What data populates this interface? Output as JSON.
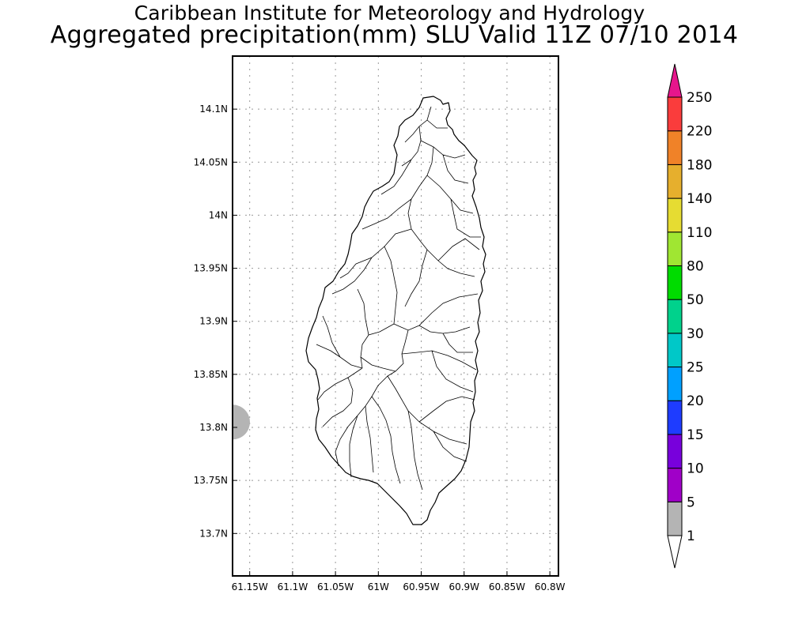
{
  "title": "Caribbean Institute for Meteorology and Hydrology",
  "subtitle": "Aggregated precipitation(mm) SLU Valid 11Z 07/10 2014",
  "map": {
    "region": "Saint Lucia",
    "lon_range": [
      -61.17,
      -60.79
    ],
    "lat_range": [
      13.66,
      14.15
    ],
    "grid": true,
    "x_tick_labels": [
      "61.15W",
      "61.1W",
      "61.05W",
      "61W",
      "60.95W",
      "60.9W",
      "60.85W",
      "60.8W"
    ],
    "x_tick_values": [
      -61.15,
      -61.1,
      -61.05,
      -61.0,
      -60.95,
      -60.9,
      -60.85,
      -60.8
    ],
    "y_tick_labels": [
      "14.1N",
      "14.05N",
      "14N",
      "13.95N",
      "13.9N",
      "13.85N",
      "13.8N",
      "13.75N",
      "13.7N"
    ],
    "y_tick_values": [
      14.1,
      14.05,
      14.0,
      13.95,
      13.9,
      13.85,
      13.8,
      13.75,
      13.7
    ],
    "precip_area": {
      "lon": -61.17,
      "lat": 13.805,
      "class": "1-5",
      "color": "#b4b4b4"
    }
  },
  "colorbar": {
    "labels": [
      "1",
      "5",
      "10",
      "15",
      "20",
      "25",
      "30",
      "50",
      "80",
      "110",
      "140",
      "180",
      "220",
      "250"
    ],
    "colors": [
      "#ffffff",
      "#b4b4b4",
      "#a000c8",
      "#7800dc",
      "#1e3cff",
      "#00a0ff",
      "#00c8c8",
      "#00d28c",
      "#00dc00",
      "#a0e632",
      "#e6dc32",
      "#e6af2d",
      "#f08228",
      "#fa3c3c",
      "#e6168c"
    ]
  }
}
